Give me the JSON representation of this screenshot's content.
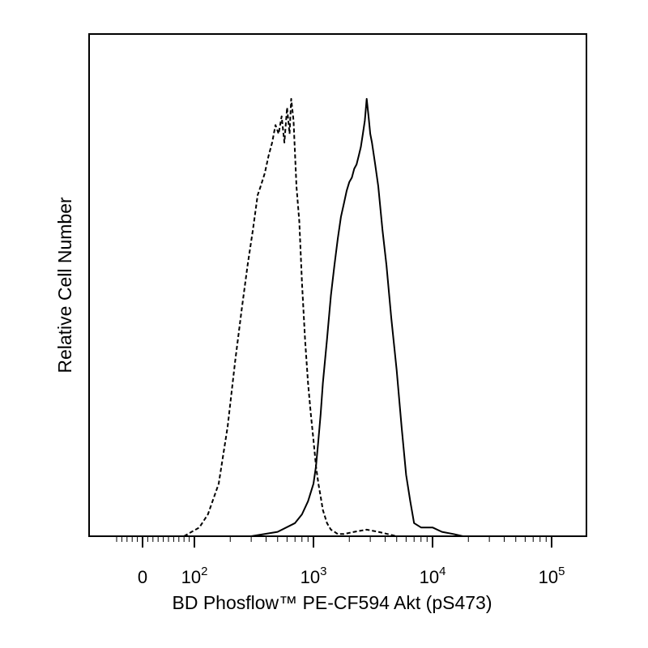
{
  "chart_data": {
    "type": "line",
    "chart_kind": "flow cytometry histogram overlay",
    "xlabel": "BD Phosflow™ PE-CF594 Akt (pS473)",
    "ylabel": "Relative Cell Number",
    "x_scale": "biexponential (log)",
    "xlim": [
      -50,
      250000
    ],
    "x_ticks": [
      {
        "value": 0,
        "base": "0",
        "exp": ""
      },
      {
        "value": 100,
        "base": "10",
        "exp": "2"
      },
      {
        "value": 1000,
        "base": "10",
        "exp": "3"
      },
      {
        "value": 10000,
        "base": "10",
        "exp": "4"
      },
      {
        "value": 100000,
        "base": "10",
        "exp": "5"
      }
    ],
    "ylim": [
      0,
      100
    ],
    "grid": false,
    "legend": "none",
    "series": [
      {
        "style": "dashed",
        "color": "#000000",
        "x": [
          80,
          110,
          130,
          160,
          190,
          220,
          250,
          280,
          310,
          340,
          360,
          390,
          420,
          450,
          480,
          510,
          540,
          570,
          600,
          630,
          650,
          680,
          720,
          760,
          800,
          850,
          900,
          950,
          1000,
          1050,
          1100,
          1150,
          1200,
          1300,
          1400,
          1500,
          1600,
          1800,
          2200,
          2800,
          3500,
          4200,
          5000
        ],
        "y": [
          0,
          2,
          5,
          12,
          25,
          40,
          52,
          62,
          70,
          78,
          80,
          83,
          87,
          90,
          94,
          92,
          96,
          90,
          98,
          92,
          100,
          95,
          80,
          72,
          58,
          45,
          35,
          28,
          22,
          16,
          12,
          9,
          6,
          3,
          1.5,
          1,
          0.5,
          0.5,
          1,
          1.5,
          1,
          0.5,
          0
        ]
      },
      {
        "style": "solid",
        "color": "#000000",
        "x": [
          300,
          500,
          700,
          800,
          900,
          1000,
          1050,
          1100,
          1150,
          1200,
          1300,
          1400,
          1500,
          1600,
          1700,
          1800,
          1900,
          2000,
          2100,
          2200,
          2300,
          2400,
          2500,
          2600,
          2700,
          2800,
          2900,
          3000,
          3100,
          3300,
          3500,
          3800,
          4100,
          4500,
          5000,
          5500,
          6000,
          6500,
          7000,
          8000,
          9000,
          10000,
          12000,
          15000,
          18000
        ],
        "y": [
          0,
          1,
          3,
          5,
          8,
          12,
          16,
          22,
          28,
          35,
          45,
          55,
          62,
          68,
          73,
          76,
          79,
          81,
          82,
          84,
          85,
          87,
          89,
          92,
          95,
          100,
          96,
          92,
          90,
          85,
          80,
          70,
          62,
          50,
          38,
          25,
          14,
          8,
          3,
          2,
          2,
          2,
          1,
          0.5,
          0
        ]
      }
    ]
  }
}
